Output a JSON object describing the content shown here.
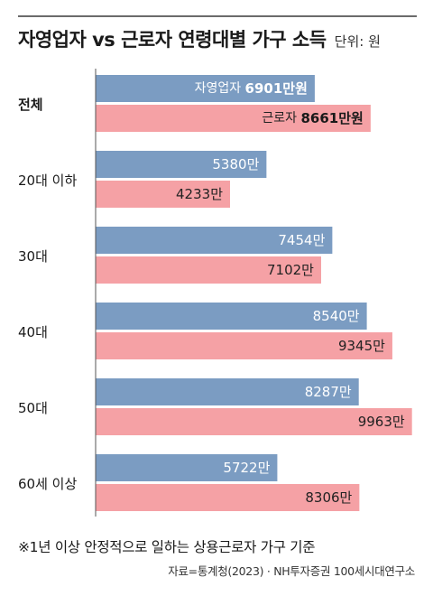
{
  "title": "자영업자 vs 근로자 연령대별 가구 소득",
  "unit": "단위: 원",
  "note": "※1년 이상 안정적으로 일하는 상용근로자 가구 기준",
  "source": "자료=통계청(2023) · NH투자증권 100세시대연구소",
  "colors": {
    "self_employed": "#7b9cc2",
    "employee": "#f5a1a5",
    "axis": "#555555"
  },
  "chart_data": {
    "type": "bar",
    "orientation": "horizontal",
    "categories": [
      "전체",
      "20대 이하",
      "30대",
      "40대",
      "50대",
      "60세 이상"
    ],
    "series": [
      {
        "name": "자영업자",
        "values": [
          6901,
          5380,
          7454,
          8540,
          8287,
          5722
        ],
        "labels": [
          "6901만원",
          "5380만",
          "7454만",
          "8540만",
          "8287만",
          "5722만"
        ]
      },
      {
        "name": "근로자",
        "values": [
          8661,
          4233,
          7102,
          9345,
          9963,
          8306
        ],
        "labels": [
          "8661만원",
          "4233만",
          "7102만",
          "9345만",
          "9963만",
          "8306만"
        ]
      }
    ],
    "units": "만원",
    "xlim": [
      0,
      10000
    ],
    "grid": false,
    "legend": "none"
  }
}
